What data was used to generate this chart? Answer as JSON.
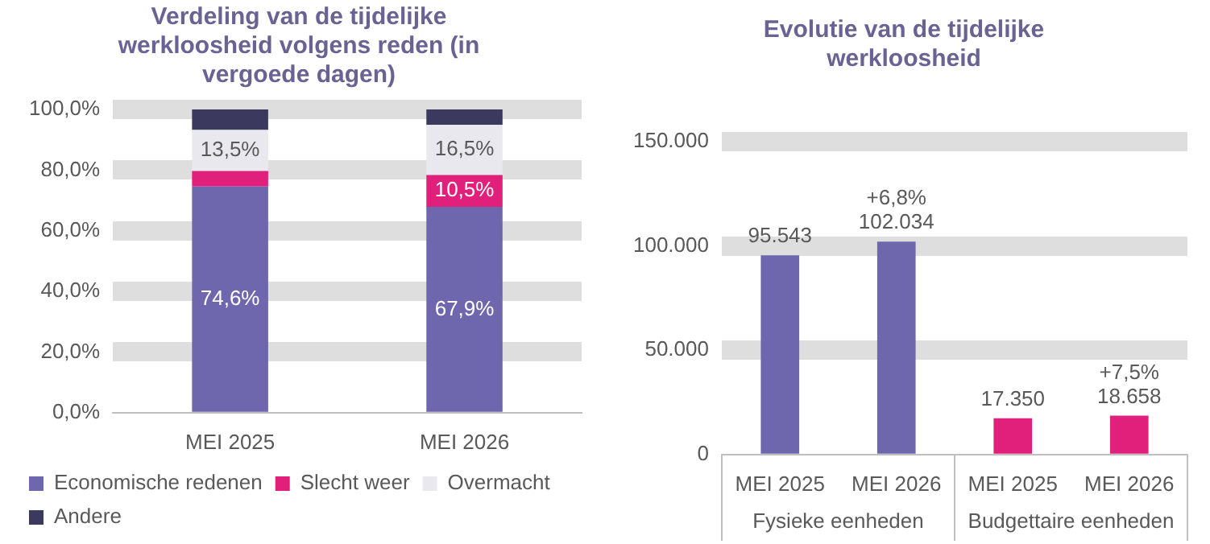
{
  "chart_data": [
    {
      "type": "bar",
      "title": "Verdeling van de tijdelijke werkloosheid volgens reden (in vergoede dagen)",
      "categories": [
        "MEI 2025",
        "MEI 2026"
      ],
      "stacked": true,
      "series": [
        {
          "name": "Economische redenen",
          "color": "#6e67ae",
          "values": [
            74.6,
            67.9
          ],
          "value_labels": [
            "74,6%",
            "67,9%"
          ]
        },
        {
          "name": "Slecht weer",
          "color": "#e0207a",
          "values": [
            5.1,
            10.5
          ],
          "value_labels": [
            null,
            "10,5%"
          ]
        },
        {
          "name": "Overmacht",
          "color": "#e8e8ee",
          "values": [
            13.5,
            16.5
          ],
          "value_labels": [
            "13,5%",
            "16,5%"
          ]
        },
        {
          "name": "Andere",
          "color": "#3b3a5e",
          "values": [
            6.8,
            5.1
          ]
        }
      ],
      "ylim": [
        0,
        100
      ],
      "yticks": [
        {
          "value": 0,
          "label": "0,0%"
        },
        {
          "value": 20,
          "label": "20,0%"
        },
        {
          "value": 40,
          "label": "40,0%"
        },
        {
          "value": 60,
          "label": "60,0%"
        },
        {
          "value": 80,
          "label": "80,0%"
        },
        {
          "value": 100,
          "label": "100,0%"
        }
      ],
      "grid": "y",
      "legend": "bottom"
    },
    {
      "type": "bar",
      "title": "Evolutie van de tijdelijke werkloosheid",
      "categories": [
        "MEI 2025",
        "MEI 2026",
        "MEI 2025",
        "MEI 2026"
      ],
      "values": [
        95543,
        102034,
        17350,
        18658
      ],
      "colors": [
        "#6e67ae",
        "#6e67ae",
        "#e0207a",
        "#e0207a"
      ],
      "value_labels": [
        "95.543",
        "+6,8%\n102.034",
        "17.350",
        "+7,5%\n18.658"
      ],
      "annotations": [
        "Fysieke eenheden",
        "Budgettaire eenheden"
      ],
      "ylim": [
        0,
        150000
      ],
      "yticks": [
        {
          "value": 0,
          "label": "0"
        },
        {
          "value": 50000,
          "label": "50.000"
        },
        {
          "value": 100000,
          "label": "100.000"
        },
        {
          "value": 150000,
          "label": "150.000"
        }
      ],
      "grid": "y",
      "legend": false
    }
  ]
}
